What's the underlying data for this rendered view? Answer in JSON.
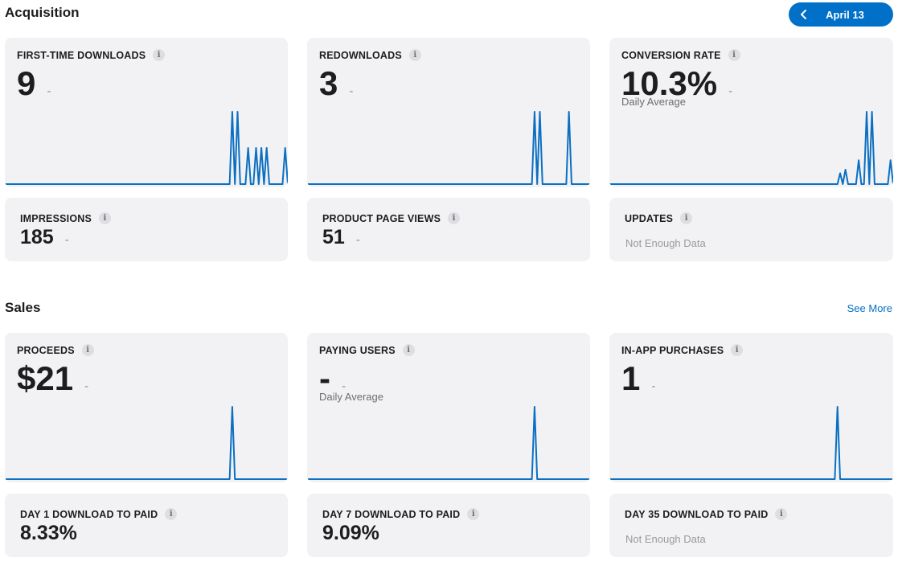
{
  "acquisition": {
    "title": "Acquisition",
    "date_button": {
      "label": "April 13",
      "icon": "chevron-left-icon"
    },
    "cards": [
      {
        "label": "FIRST-TIME DOWNLOADS",
        "value": "9",
        "trend": "-",
        "sparkline": [
          0,
          0,
          0,
          0,
          0,
          0,
          0,
          0,
          0,
          0,
          0,
          0,
          0,
          0,
          0,
          0,
          0,
          0,
          0,
          0,
          0,
          0,
          0,
          0,
          0,
          0,
          0,
          0,
          0,
          0,
          0,
          0,
          0,
          0,
          0,
          0,
          0,
          0,
          0,
          0,
          0,
          0,
          0,
          0,
          0,
          0,
          0,
          0,
          0,
          0,
          0,
          0,
          0,
          0,
          0,
          0,
          0,
          0,
          0,
          0,
          0,
          0,
          0,
          0,
          0,
          0,
          0,
          0,
          0,
          0,
          0,
          0,
          0,
          0,
          0,
          0,
          0,
          0,
          0,
          0,
          0,
          0,
          0,
          0,
          0,
          0,
          2,
          0,
          2,
          0,
          0,
          0,
          1,
          0,
          0,
          1,
          0,
          1,
          0,
          1,
          0,
          0,
          0,
          0,
          0,
          0,
          1,
          0
        ]
      },
      {
        "label": "REDOWNLOADS",
        "value": "3",
        "trend": "-",
        "sparkline": [
          0,
          0,
          0,
          0,
          0,
          0,
          0,
          0,
          0,
          0,
          0,
          0,
          0,
          0,
          0,
          0,
          0,
          0,
          0,
          0,
          0,
          0,
          0,
          0,
          0,
          0,
          0,
          0,
          0,
          0,
          0,
          0,
          0,
          0,
          0,
          0,
          0,
          0,
          0,
          0,
          0,
          0,
          0,
          0,
          0,
          0,
          0,
          0,
          0,
          0,
          0,
          0,
          0,
          0,
          0,
          0,
          0,
          0,
          0,
          0,
          0,
          0,
          0,
          0,
          0,
          0,
          0,
          0,
          0,
          0,
          0,
          0,
          0,
          0,
          0,
          0,
          0,
          0,
          0,
          0,
          0,
          0,
          0,
          0,
          0,
          0,
          1,
          0,
          1,
          0,
          0,
          0,
          0,
          0,
          0,
          0,
          0,
          0,
          0,
          1,
          0,
          0,
          0,
          0,
          0,
          0,
          0,
          0
        ]
      },
      {
        "label": "CONVERSION RATE",
        "value": "10.3%",
        "trend": "-",
        "sub": "Daily Average",
        "sparkline": [
          0,
          0,
          0,
          0,
          0,
          0,
          0,
          0,
          0,
          0,
          0,
          0,
          0,
          0,
          0,
          0,
          0,
          0,
          0,
          0,
          0,
          0,
          0,
          0,
          0,
          0,
          0,
          0,
          0,
          0,
          0,
          0,
          0,
          0,
          0,
          0,
          0,
          0,
          0,
          0,
          0,
          0,
          0,
          0,
          0,
          0,
          0,
          0,
          0,
          0,
          0,
          0,
          0,
          0,
          0,
          0,
          0,
          0,
          0,
          0,
          0,
          0,
          0,
          0,
          0,
          0,
          0,
          0,
          0,
          0,
          0,
          0,
          0,
          0,
          0,
          0,
          0,
          0,
          0,
          0,
          0,
          0,
          0,
          0,
          0,
          0,
          0,
          0.15,
          0,
          0.2,
          0,
          0,
          0,
          0,
          0.33,
          0,
          0,
          1,
          0,
          1,
          0,
          0,
          0,
          0,
          0,
          0,
          0.33,
          0
        ]
      }
    ],
    "small_cards": [
      {
        "label": "IMPRESSIONS",
        "value": "185",
        "trend": "-"
      },
      {
        "label": "PRODUCT PAGE VIEWS",
        "value": "51",
        "trend": "-"
      },
      {
        "label": "UPDATES",
        "note": "Not Enough Data"
      }
    ]
  },
  "sales": {
    "title": "Sales",
    "see_more": "See More",
    "cards": [
      {
        "label": "PROCEEDS",
        "value": "$21",
        "trend": "-",
        "sparkline": [
          0,
          0,
          0,
          0,
          0,
          0,
          0,
          0,
          0,
          0,
          0,
          0,
          0,
          0,
          0,
          0,
          0,
          0,
          0,
          0,
          0,
          0,
          0,
          0,
          0,
          0,
          0,
          0,
          0,
          0,
          0,
          0,
          0,
          0,
          0,
          0,
          0,
          0,
          0,
          0,
          0,
          0,
          0,
          0,
          0,
          0,
          0,
          0,
          0,
          0,
          0,
          0,
          0,
          0,
          0,
          0,
          0,
          0,
          0,
          0,
          0,
          0,
          0,
          0,
          0,
          0,
          0,
          0,
          0,
          0,
          0,
          0,
          0,
          0,
          0,
          0,
          0,
          0,
          0,
          0,
          0,
          0,
          0,
          0,
          0,
          0,
          1,
          0,
          0,
          0,
          0,
          0,
          0,
          0,
          0,
          0,
          0,
          0,
          0,
          0,
          0,
          0,
          0,
          0,
          0,
          0,
          0,
          0
        ]
      },
      {
        "label": "PAYING USERS",
        "value": "-",
        "trend": "-",
        "sub": "Daily Average",
        "sparkline": [
          0,
          0,
          0,
          0,
          0,
          0,
          0,
          0,
          0,
          0,
          0,
          0,
          0,
          0,
          0,
          0,
          0,
          0,
          0,
          0,
          0,
          0,
          0,
          0,
          0,
          0,
          0,
          0,
          0,
          0,
          0,
          0,
          0,
          0,
          0,
          0,
          0,
          0,
          0,
          0,
          0,
          0,
          0,
          0,
          0,
          0,
          0,
          0,
          0,
          0,
          0,
          0,
          0,
          0,
          0,
          0,
          0,
          0,
          0,
          0,
          0,
          0,
          0,
          0,
          0,
          0,
          0,
          0,
          0,
          0,
          0,
          0,
          0,
          0,
          0,
          0,
          0,
          0,
          0,
          0,
          0,
          0,
          0,
          0,
          0,
          0,
          1,
          0,
          0,
          0,
          0,
          0,
          0,
          0,
          0,
          0,
          0,
          0,
          0,
          0,
          0,
          0,
          0,
          0,
          0,
          0,
          0,
          0
        ]
      },
      {
        "label": "IN-APP PURCHASES",
        "value": "1",
        "trend": "-",
        "sparkline": [
          0,
          0,
          0,
          0,
          0,
          0,
          0,
          0,
          0,
          0,
          0,
          0,
          0,
          0,
          0,
          0,
          0,
          0,
          0,
          0,
          0,
          0,
          0,
          0,
          0,
          0,
          0,
          0,
          0,
          0,
          0,
          0,
          0,
          0,
          0,
          0,
          0,
          0,
          0,
          0,
          0,
          0,
          0,
          0,
          0,
          0,
          0,
          0,
          0,
          0,
          0,
          0,
          0,
          0,
          0,
          0,
          0,
          0,
          0,
          0,
          0,
          0,
          0,
          0,
          0,
          0,
          0,
          0,
          0,
          0,
          0,
          0,
          0,
          0,
          0,
          0,
          0,
          0,
          0,
          0,
          0,
          0,
          0,
          0,
          0,
          0,
          1,
          0,
          0,
          0,
          0,
          0,
          0,
          0,
          0,
          0,
          0,
          0,
          0,
          0,
          0,
          0,
          0,
          0,
          0,
          0,
          0,
          0
        ]
      }
    ],
    "small_cards": [
      {
        "label": "DAY 1 DOWNLOAD TO PAID",
        "value": "8.33%"
      },
      {
        "label": "DAY 7 DOWNLOAD TO PAID",
        "value": "9.09%"
      },
      {
        "label": "DAY 35 DOWNLOAD TO PAID",
        "note": "Not Enough Data"
      }
    ]
  },
  "info_glyph": "i",
  "colors": {
    "accent": "#0070c9",
    "card_bg": "#f2f2f4",
    "line": "#0b6fc2"
  }
}
